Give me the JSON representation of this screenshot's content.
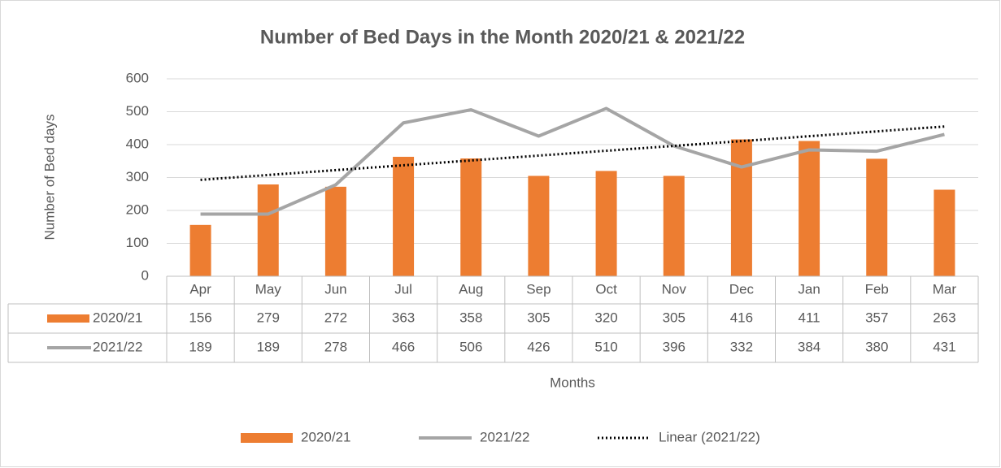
{
  "chart_data": {
    "type": "bar_line",
    "title": "Number of Bed Days in the Month 2020/21 & 2021/22",
    "x_label": "Months",
    "y_label": "Number of Bed days",
    "categories": [
      "Apr",
      "May",
      "Jun",
      "Jul",
      "Aug",
      "Sep",
      "Oct",
      "Nov",
      "Dec",
      "Jan",
      "Feb",
      "Mar"
    ],
    "series": [
      {
        "name": "2020/21",
        "type": "bar",
        "color": "#ed7d31",
        "values": [
          156,
          279,
          272,
          363,
          358,
          305,
          320,
          305,
          416,
          411,
          357,
          263
        ]
      },
      {
        "name": "2021/22",
        "type": "line",
        "color": "#a5a5a5",
        "values": [
          189,
          189,
          278,
          466,
          506,
          426,
          510,
          396,
          332,
          384,
          380,
          431
        ]
      }
    ],
    "trendline": {
      "name": "Linear (2021/22)",
      "color": "#000000",
      "values": [
        293,
        455
      ]
    },
    "ylim": [
      0,
      600
    ],
    "yticks": [
      0,
      100,
      200,
      300,
      400,
      500,
      600
    ],
    "grid": true
  }
}
